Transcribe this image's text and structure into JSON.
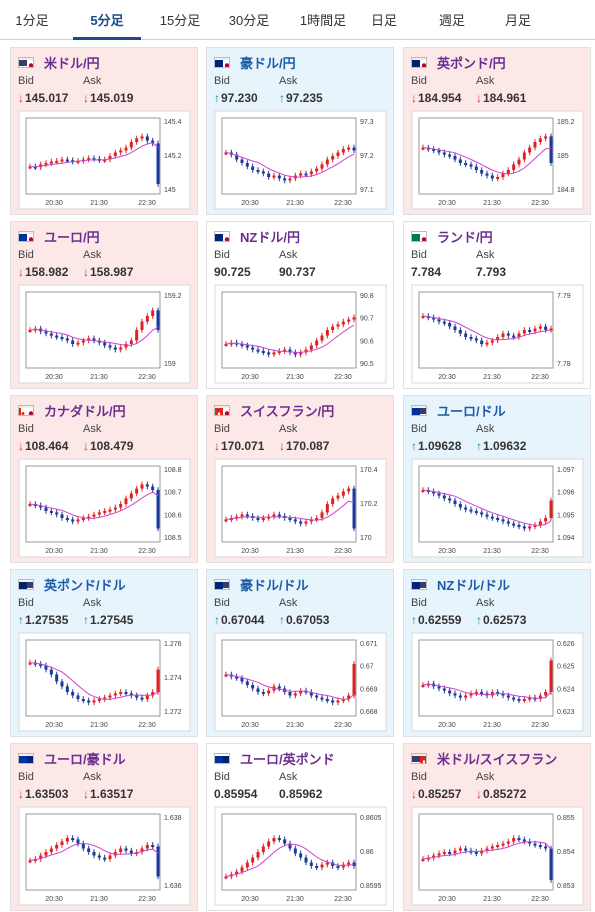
{
  "tabs": [
    {
      "label": "1分足",
      "active": false
    },
    {
      "label": "5分足",
      "active": true
    },
    {
      "label": "15分足",
      "active": false
    },
    {
      "label": "30分足",
      "active": false
    },
    {
      "label": "1時間足",
      "active": false
    },
    {
      "label": "日足",
      "active": false
    },
    {
      "label": "週足",
      "active": false
    },
    {
      "label": "月足",
      "active": false
    }
  ],
  "labels": {
    "bid": "Bid",
    "ask": "Ask"
  },
  "colors": {
    "up_candle": "#1a3a9c",
    "down_candle": "#e02020",
    "ma_line": "#cc44cc",
    "ma_line2": "#3388cc"
  },
  "cards": [
    {
      "pair": "米ドル/円",
      "flag": "us-jp-flag-icon",
      "theme": "down",
      "direction": "down",
      "bid": "145.017",
      "ask": "145.019",
      "chart_data": {
        "type": "candlestick",
        "x_ticks": [
          "20:30",
          "21:30",
          "22:30"
        ],
        "y_ticks": [
          "145.4",
          "145.2",
          "145"
        ],
        "trend": [
          0.35,
          0.34,
          0.38,
          0.4,
          0.42,
          0.43,
          0.45,
          0.44,
          0.42,
          0.43,
          0.45,
          0.47,
          0.46,
          0.44,
          0.45,
          0.5,
          0.55,
          0.58,
          0.62,
          0.7,
          0.75,
          0.78,
          0.72,
          0.68,
          0.1
        ]
      }
    },
    {
      "pair": "豪ドル/円",
      "flag": "au-jp-flag-icon",
      "theme": "up",
      "direction": "up",
      "bid": "97.230",
      "ask": "97.235",
      "chart_data": {
        "type": "candlestick",
        "x_ticks": [
          "20:30",
          "21:30",
          "22:30"
        ],
        "y_ticks": [
          "97.3",
          "97.2",
          "97.1"
        ],
        "trend": [
          0.55,
          0.52,
          0.45,
          0.4,
          0.35,
          0.3,
          0.28,
          0.25,
          0.2,
          0.22,
          0.18,
          0.15,
          0.18,
          0.22,
          0.25,
          0.24,
          0.28,
          0.32,
          0.38,
          0.45,
          0.5,
          0.55,
          0.6,
          0.62,
          0.58
        ]
      }
    },
    {
      "pair": "英ポンド/円",
      "flag": "gb-jp-flag-icon",
      "theme": "down",
      "direction": "down",
      "bid": "184.954",
      "ask": "184.961",
      "chart_data": {
        "type": "candlestick",
        "x_ticks": [
          "20:30",
          "21:30",
          "22:30"
        ],
        "y_ticks": [
          "185.2",
          "185",
          "184.8"
        ],
        "trend": [
          0.62,
          0.6,
          0.58,
          0.55,
          0.52,
          0.5,
          0.45,
          0.4,
          0.38,
          0.35,
          0.3,
          0.25,
          0.22,
          0.18,
          0.2,
          0.25,
          0.3,
          0.38,
          0.45,
          0.55,
          0.62,
          0.7,
          0.75,
          0.78,
          0.4
        ]
      }
    },
    {
      "pair": "ユーロ/円",
      "flag": "eu-jp-flag-icon",
      "theme": "down",
      "direction": "down",
      "bid": "158.982",
      "ask": "158.987",
      "chart_data": {
        "type": "candlestick",
        "x_ticks": [
          "20:30",
          "21:30",
          "22:30"
        ],
        "y_ticks": [
          "159.2",
          "159"
        ],
        "trend": [
          0.5,
          0.52,
          0.48,
          0.45,
          0.42,
          0.4,
          0.38,
          0.35,
          0.3,
          0.32,
          0.35,
          0.38,
          0.35,
          0.32,
          0.28,
          0.25,
          0.22,
          0.25,
          0.3,
          0.35,
          0.5,
          0.62,
          0.7,
          0.78,
          0.5
        ]
      }
    },
    {
      "pair": "NZドル/円",
      "flag": "nz-jp-flag-icon",
      "theme": "flat",
      "direction": "none",
      "bid": "90.725",
      "ask": "90.737",
      "chart_data": {
        "type": "candlestick",
        "x_ticks": [
          "20:30",
          "21:30",
          "22:30"
        ],
        "y_ticks": [
          "90.8",
          "90.7",
          "90.6",
          "90.5"
        ],
        "trend": [
          0.3,
          0.32,
          0.3,
          0.28,
          0.25,
          0.22,
          0.2,
          0.18,
          0.15,
          0.18,
          0.2,
          0.22,
          0.18,
          0.15,
          0.18,
          0.22,
          0.28,
          0.35,
          0.42,
          0.5,
          0.55,
          0.58,
          0.62,
          0.65,
          0.68
        ]
      }
    },
    {
      "pair": "ランド/円",
      "flag": "za-jp-flag-icon",
      "theme": "flat",
      "direction": "none",
      "bid": "7.784",
      "ask": "7.793",
      "chart_data": {
        "type": "candlestick",
        "x_ticks": [
          "20:30",
          "21:30",
          "22:30"
        ],
        "y_ticks": [
          "7.79",
          "7.78"
        ],
        "trend": [
          0.7,
          0.68,
          0.65,
          0.62,
          0.6,
          0.55,
          0.5,
          0.45,
          0.4,
          0.38,
          0.35,
          0.3,
          0.32,
          0.35,
          0.4,
          0.45,
          0.42,
          0.4,
          0.45,
          0.5,
          0.48,
          0.52,
          0.55,
          0.5,
          0.52
        ]
      }
    },
    {
      "pair": "カナダドル/円",
      "flag": "ca-jp-flag-icon",
      "theme": "down",
      "direction": "down",
      "bid": "108.464",
      "ask": "108.479",
      "chart_data": {
        "type": "candlestick",
        "x_ticks": [
          "20:30",
          "21:30",
          "22:30"
        ],
        "y_ticks": [
          "108.8",
          "108.7",
          "108.6",
          "108.5"
        ],
        "trend": [
          0.5,
          0.48,
          0.45,
          0.4,
          0.38,
          0.35,
          0.3,
          0.28,
          0.25,
          0.28,
          0.3,
          0.32,
          0.35,
          0.38,
          0.4,
          0.42,
          0.45,
          0.5,
          0.58,
          0.65,
          0.72,
          0.78,
          0.75,
          0.7,
          0.15
        ]
      }
    },
    {
      "pair": "スイスフラン/円",
      "flag": "ch-jp-flag-icon",
      "theme": "down",
      "direction": "down",
      "bid": "170.071",
      "ask": "170.087",
      "chart_data": {
        "type": "candlestick",
        "x_ticks": [
          "20:30",
          "21:30",
          "22:30"
        ],
        "y_ticks": [
          "170.4",
          "170.2",
          "170"
        ],
        "trend": [
          0.28,
          0.3,
          0.32,
          0.35,
          0.33,
          0.3,
          0.28,
          0.3,
          0.32,
          0.35,
          0.33,
          0.3,
          0.28,
          0.25,
          0.22,
          0.25,
          0.28,
          0.3,
          0.38,
          0.5,
          0.58,
          0.62,
          0.68,
          0.72,
          0.15
        ]
      }
    },
    {
      "pair": "ユーロ/ドル",
      "flag": "eu-us-flag-icon",
      "theme": "up",
      "direction": "up",
      "bid": "1.09628",
      "ask": "1.09632",
      "chart_data": {
        "type": "candlestick",
        "x_ticks": [
          "20:30",
          "21:30",
          "22:30"
        ],
        "y_ticks": [
          "1.097",
          "1.096",
          "1.095",
          "1.094"
        ],
        "trend": [
          0.7,
          0.68,
          0.65,
          0.62,
          0.58,
          0.55,
          0.5,
          0.45,
          0.42,
          0.4,
          0.38,
          0.35,
          0.32,
          0.3,
          0.28,
          0.25,
          0.22,
          0.2,
          0.18,
          0.15,
          0.18,
          0.2,
          0.25,
          0.3,
          0.55
        ]
      }
    },
    {
      "pair": "英ポンド/ドル",
      "flag": "gb-us-flag-icon",
      "theme": "up",
      "direction": "up",
      "bid": "1.27535",
      "ask": "1.27545",
      "chart_data": {
        "type": "candlestick",
        "x_ticks": [
          "20:30",
          "21:30",
          "22:30"
        ],
        "y_ticks": [
          "1.276",
          "1.274",
          "1.272"
        ],
        "trend": [
          0.72,
          0.7,
          0.68,
          0.62,
          0.55,
          0.45,
          0.38,
          0.3,
          0.25,
          0.2,
          0.18,
          0.15,
          0.18,
          0.2,
          0.22,
          0.25,
          0.28,
          0.3,
          0.28,
          0.25,
          0.22,
          0.2,
          0.25,
          0.3,
          0.62
        ]
      }
    },
    {
      "pair": "豪ドル/ドル",
      "flag": "au-us-flag-icon",
      "theme": "up",
      "direction": "up",
      "bid": "0.67044",
      "ask": "0.67053",
      "chart_data": {
        "type": "candlestick",
        "x_ticks": [
          "20:30",
          "21:30",
          "22:30"
        ],
        "y_ticks": [
          "0.671",
          "0.67",
          "0.669",
          "0.668"
        ],
        "trend": [
          0.55,
          0.52,
          0.5,
          0.45,
          0.4,
          0.35,
          0.3,
          0.28,
          0.32,
          0.38,
          0.35,
          0.3,
          0.25,
          0.28,
          0.32,
          0.3,
          0.25,
          0.22,
          0.2,
          0.18,
          0.15,
          0.18,
          0.2,
          0.25,
          0.7
        ]
      }
    },
    {
      "pair": "NZドル/ドル",
      "flag": "nz-us-flag-icon",
      "theme": "up",
      "direction": "up",
      "bid": "0.62559",
      "ask": "0.62573",
      "chart_data": {
        "type": "candlestick",
        "x_ticks": [
          "20:30",
          "21:30",
          "22:30"
        ],
        "y_ticks": [
          "0.626",
          "0.625",
          "0.624",
          "0.623"
        ],
        "trend": [
          0.4,
          0.42,
          0.38,
          0.35,
          0.32,
          0.28,
          0.25,
          0.22,
          0.25,
          0.28,
          0.3,
          0.28,
          0.25,
          0.3,
          0.28,
          0.25,
          0.22,
          0.2,
          0.18,
          0.2,
          0.22,
          0.2,
          0.25,
          0.3,
          0.75
        ]
      }
    },
    {
      "pair": "ユーロ/豪ドル",
      "flag": "eu-au-flag-icon",
      "theme": "down",
      "direction": "down",
      "bid": "1.63503",
      "ask": "1.63517",
      "chart_data": {
        "type": "candlestick",
        "x_ticks": [
          "20:30",
          "21:30",
          "22:30"
        ],
        "y_ticks": [
          "1.638",
          "1.636"
        ],
        "trend": [
          0.38,
          0.4,
          0.45,
          0.5,
          0.55,
          0.6,
          0.65,
          0.7,
          0.68,
          0.62,
          0.55,
          0.5,
          0.45,
          0.42,
          0.4,
          0.45,
          0.5,
          0.55,
          0.52,
          0.48,
          0.5,
          0.55,
          0.6,
          0.58,
          0.15
        ]
      }
    },
    {
      "pair": "ユーロ/英ポンド",
      "flag": "eu-gb-flag-icon",
      "theme": "flat",
      "direction": "none",
      "bid": "0.85954",
      "ask": "0.85962",
      "chart_data": {
        "type": "candlestick",
        "x_ticks": [
          "20:30",
          "21:30",
          "22:30"
        ],
        "y_ticks": [
          "0.8605",
          "0.86",
          "0.8595"
        ],
        "trend": [
          0.15,
          0.18,
          0.22,
          0.28,
          0.35,
          0.42,
          0.5,
          0.58,
          0.65,
          0.7,
          0.68,
          0.62,
          0.55,
          0.48,
          0.42,
          0.35,
          0.3,
          0.28,
          0.32,
          0.35,
          0.3,
          0.28,
          0.32,
          0.35,
          0.3
        ]
      }
    },
    {
      "pair": "米ドル/スイスフラン",
      "flag": "us-ch-flag-icon",
      "theme": "down",
      "direction": "down",
      "bid": "0.85257",
      "ask": "0.85272",
      "chart_data": {
        "type": "candlestick",
        "x_ticks": [
          "20:30",
          "21:30",
          "22:30"
        ],
        "y_ticks": [
          "0.855",
          "0.854",
          "0.853"
        ],
        "trend": [
          0.4,
          0.42,
          0.45,
          0.48,
          0.5,
          0.48,
          0.52,
          0.55,
          0.52,
          0.5,
          0.48,
          0.52,
          0.55,
          0.58,
          0.6,
          0.62,
          0.65,
          0.7,
          0.68,
          0.65,
          0.62,
          0.6,
          0.58,
          0.55,
          0.1
        ]
      }
    }
  ]
}
